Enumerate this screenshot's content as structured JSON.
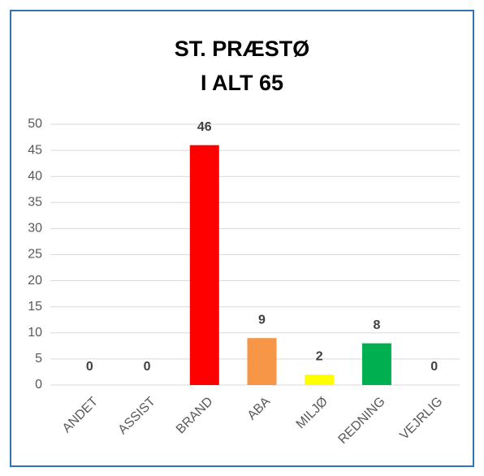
{
  "chart_data": {
    "type": "bar",
    "title": "ST. PRÆSTØ",
    "subtitle": "I ALT 65",
    "categories": [
      "ANDET",
      "ASSIST",
      "BRAND",
      "ABA",
      "MILJØ",
      "REDNING",
      "VEJRLIG"
    ],
    "values": [
      0,
      0,
      46,
      9,
      2,
      8,
      0
    ],
    "colors": [
      null,
      null,
      "#ff0000",
      "#f79646",
      "#ffff00",
      "#00b050",
      null
    ],
    "ylim": [
      0,
      50
    ],
    "yticks": [
      0,
      5,
      10,
      15,
      20,
      25,
      30,
      35,
      40,
      45,
      50
    ],
    "grid": true
  }
}
